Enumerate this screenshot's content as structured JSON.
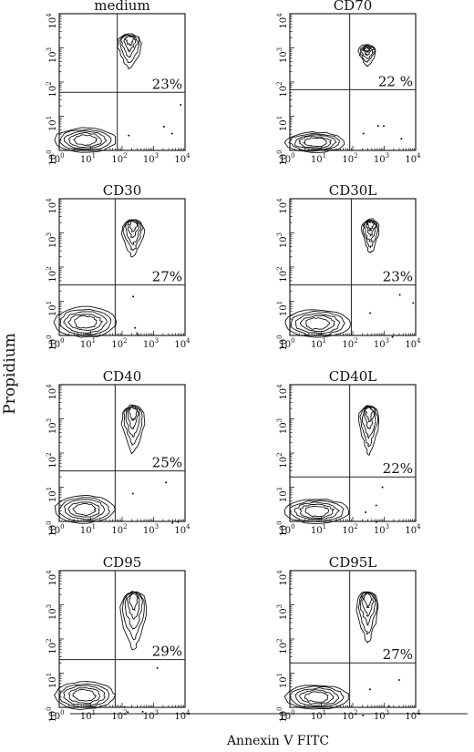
{
  "figure": {
    "ylabel": "Propidium",
    "xlabel": "Annexin V  FITC",
    "tick_base": "10",
    "axis_exponents": [
      "0",
      "1",
      "2",
      "3",
      "4"
    ]
  },
  "chart_data": [
    {
      "type": "contour",
      "title": "medium",
      "annotation": "23%",
      "x_scale": "log",
      "y_scale": "log",
      "xlim": [
        1,
        10000
      ],
      "ylim": [
        1,
        10000
      ],
      "gate": {
        "x": 70,
        "y": 50
      },
      "populations": [
        {
          "name": "",
          "x": [
            50,
            600
          ],
          "y": [
            250,
            2500
          ]
        },
        {
          "name": "",
          "x": [
            1,
            70
          ],
          "y": [
            1,
            4
          ]
        }
      ]
    },
    {
      "type": "contour",
      "title": "CD70",
      "annotation": "22 %",
      "x_scale": "log",
      "y_scale": "log",
      "xlim": [
        1,
        10000
      ],
      "ylim": [
        1,
        10000
      ],
      "gate": {
        "x": 80,
        "y": 60
      },
      "populations": [
        {
          "name": "",
          "x": [
            120,
            700
          ],
          "y": [
            300,
            1200
          ]
        },
        {
          "name": "",
          "x": [
            1,
            60
          ],
          "y": [
            1,
            3
          ]
        }
      ]
    },
    {
      "type": "contour",
      "title": "CD30",
      "annotation": "27%",
      "x_scale": "log",
      "y_scale": "log",
      "xlim": [
        1,
        10000
      ],
      "ylim": [
        1,
        10000
      ],
      "gate": {
        "x": 60,
        "y": 30
      },
      "populations": [
        {
          "name": "",
          "x": [
            70,
            700
          ],
          "y": [
            200,
            2500
          ]
        },
        {
          "name": "",
          "x": [
            1,
            70
          ],
          "y": [
            1,
            6
          ]
        }
      ]
    },
    {
      "type": "contour",
      "title": "CD30L",
      "annotation": "23%",
      "x_scale": "log",
      "y_scale": "log",
      "xlim": [
        1,
        10000
      ],
      "ylim": [
        1,
        10000
      ],
      "gate": {
        "x": 90,
        "y": 30
      },
      "populations": [
        {
          "name": "",
          "x": [
            150,
            900
          ],
          "y": [
            250,
            2500
          ]
        },
        {
          "name": "",
          "x": [
            1,
            90
          ],
          "y": [
            1,
            5
          ]
        }
      ]
    },
    {
      "type": "contour",
      "title": "CD40",
      "annotation": "25%",
      "x_scale": "log",
      "y_scale": "log",
      "xlim": [
        1,
        10000
      ],
      "ylim": [
        1,
        10000
      ],
      "gate": {
        "x": 60,
        "y": 30
      },
      "populations": [
        {
          "name": "",
          "x": [
            70,
            700
          ],
          "y": [
            100,
            2500
          ]
        },
        {
          "name": "",
          "x": [
            1,
            60
          ],
          "y": [
            1,
            5
          ]
        }
      ]
    },
    {
      "type": "contour",
      "title": "CD40L",
      "annotation": "22%",
      "x_scale": "log",
      "y_scale": "log",
      "xlim": [
        1,
        10000
      ],
      "ylim": [
        1,
        10000
      ],
      "gate": {
        "x": 80,
        "y": 20
      },
      "populations": [
        {
          "name": "",
          "x": [
            120,
            900
          ],
          "y": [
            90,
            2500
          ]
        },
        {
          "name": "",
          "x": [
            1,
            80
          ],
          "y": [
            1,
            4
          ]
        }
      ]
    },
    {
      "type": "contour",
      "title": "CD95",
      "annotation": "29%",
      "x_scale": "log",
      "y_scale": "log",
      "xlim": [
        1,
        10000
      ],
      "ylim": [
        1,
        10000
      ],
      "gate": {
        "x": 60,
        "y": 25
      },
      "populations": [
        {
          "name": "",
          "x": [
            60,
            900
          ],
          "y": [
            50,
            2500
          ]
        },
        {
          "name": "",
          "x": [
            1,
            60
          ],
          "y": [
            1,
            5
          ]
        }
      ]
    },
    {
      "type": "contour",
      "title": "CD95L",
      "annotation": "27%",
      "x_scale": "log",
      "y_scale": "log",
      "xlim": [
        1,
        10000
      ],
      "ylim": [
        1,
        10000
      ],
      "gate": {
        "x": 80,
        "y": 20
      },
      "populations": [
        {
          "name": "",
          "x": [
            100,
            900
          ],
          "y": [
            80,
            2500
          ]
        },
        {
          "name": "",
          "x": [
            1,
            80
          ],
          "y": [
            1,
            4
          ]
        }
      ]
    }
  ]
}
